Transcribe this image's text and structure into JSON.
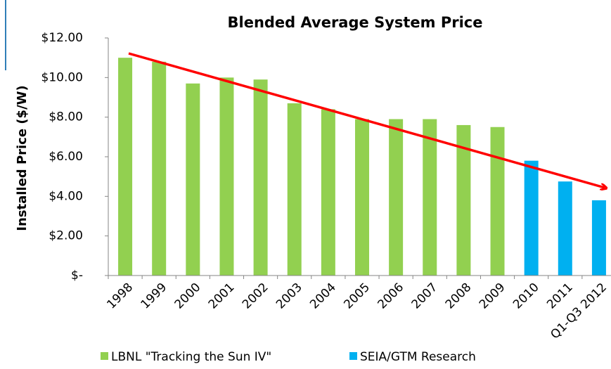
{
  "chart_data": {
    "type": "bar",
    "title": "Blended Average System Price",
    "y_label": "Installed Price ($/W)",
    "categories": [
      "1998",
      "1999",
      "2000",
      "2001",
      "2002",
      "2003",
      "2004",
      "2005",
      "2006",
      "2007",
      "2008",
      "2009",
      "2010",
      "2011",
      "Q1-Q3 2012"
    ],
    "series": [
      {
        "name": "LBNL \"Tracking the Sun IV\"",
        "color": "#92d050",
        "values": [
          11.0,
          10.8,
          9.7,
          10.0,
          9.9,
          8.7,
          8.4,
          7.9,
          7.9,
          7.9,
          7.6,
          7.5,
          null,
          null,
          null
        ]
      },
      {
        "name": "SEIA/GTM Research",
        "color": "#00b0f0",
        "values": [
          null,
          null,
          null,
          null,
          null,
          null,
          null,
          null,
          null,
          null,
          null,
          null,
          5.8,
          4.75,
          3.8
        ]
      }
    ],
    "ylim": [
      0,
      12
    ],
    "yticks": [
      {
        "value": 0,
        "label": "$-"
      },
      {
        "value": 2,
        "label": "$2.00"
      },
      {
        "value": 4,
        "label": "$4.00"
      },
      {
        "value": 6,
        "label": "$6.00"
      },
      {
        "value": 8,
        "label": "$8.00"
      },
      {
        "value": 10,
        "label": "$10.00"
      },
      {
        "value": 12,
        "label": "$12.00"
      }
    ],
    "grid": false,
    "legend": "bottom"
  }
}
